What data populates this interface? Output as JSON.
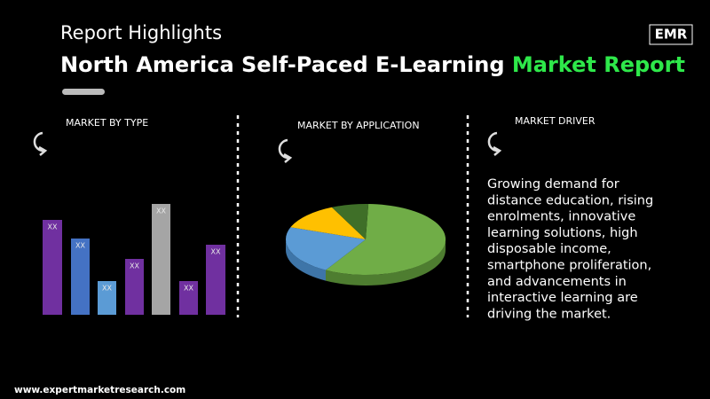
{
  "header": {
    "subtitle": "Report Highlights",
    "title_white": "North America Self-Paced E-Learning",
    "title_green": "Market Report",
    "logo": "EMR"
  },
  "panels": [
    {
      "heading": "MARKET BY TYPE",
      "bar_labels": [
        "XX",
        "XX",
        "XX",
        "XX",
        "XX",
        "XX",
        "XX"
      ]
    },
    {
      "heading": "MARKET BY APPLICATION"
    },
    {
      "heading": "MARKET DRIVER",
      "text_lines": [
        "Growing demand for",
        "distance education, rising",
        "enrolments, innovative",
        "learning solutions, high",
        "disposable income,",
        "smartphone proliferation,",
        "and advancements in",
        "interactive learning are",
        "driving the market."
      ]
    }
  ],
  "footer": {
    "url": "www.expertmarketresearch.com"
  }
}
